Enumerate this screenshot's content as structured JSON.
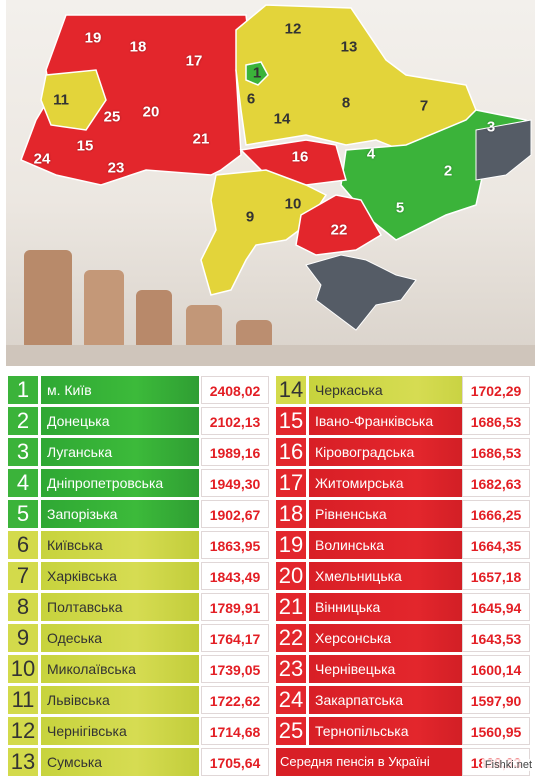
{
  "map": {
    "labels": [
      {
        "n": "19",
        "color": "red"
      },
      {
        "n": "18",
        "color": "red"
      },
      {
        "n": "17",
        "color": "red"
      },
      {
        "n": "12",
        "color": "yellow"
      },
      {
        "n": "13",
        "color": "yellow"
      },
      {
        "n": "1",
        "color": "green"
      },
      {
        "n": "11",
        "color": "yellow"
      },
      {
        "n": "6",
        "color": "yellow"
      },
      {
        "n": "8",
        "color": "yellow"
      },
      {
        "n": "7",
        "color": "yellow"
      },
      {
        "n": "25",
        "color": "red"
      },
      {
        "n": "20",
        "color": "red"
      },
      {
        "n": "14",
        "color": "yellow"
      },
      {
        "n": "3",
        "color": "green"
      },
      {
        "n": "21",
        "color": "red"
      },
      {
        "n": "15",
        "color": "red"
      },
      {
        "n": "24",
        "color": "red"
      },
      {
        "n": "23",
        "color": "red"
      },
      {
        "n": "16",
        "color": "red"
      },
      {
        "n": "4",
        "color": "green"
      },
      {
        "n": "2",
        "color": "green"
      },
      {
        "n": "5",
        "color": "green"
      },
      {
        "n": "10",
        "color": "yellow"
      },
      {
        "n": "9",
        "color": "yellow"
      },
      {
        "n": "22",
        "color": "red"
      }
    ]
  },
  "table": {
    "left": [
      {
        "n": "1",
        "name": "м. Київ",
        "value": "2408,02",
        "tier": "g"
      },
      {
        "n": "2",
        "name": "Донецька",
        "value": "2102,13",
        "tier": "g"
      },
      {
        "n": "3",
        "name": "Луганська",
        "value": "1989,16",
        "tier": "g"
      },
      {
        "n": "4",
        "name": "Дніпропетровська",
        "value": "1949,30",
        "tier": "g"
      },
      {
        "n": "5",
        "name": "Запорізька",
        "value": "1902,67",
        "tier": "g"
      },
      {
        "n": "6",
        "name": "Київська",
        "value": "1863,95",
        "tier": "y"
      },
      {
        "n": "7",
        "name": "Харківська",
        "value": "1843,49",
        "tier": "y"
      },
      {
        "n": "8",
        "name": "Полтавська",
        "value": "1789,91",
        "tier": "y"
      },
      {
        "n": "9",
        "name": "Одеська",
        "value": "1764,17",
        "tier": "y"
      },
      {
        "n": "10",
        "name": "Миколаївська",
        "value": "1739,05",
        "tier": "y"
      },
      {
        "n": "11",
        "name": "Львівська",
        "value": "1722,62",
        "tier": "y"
      },
      {
        "n": "12",
        "name": "Чернігівська",
        "value": "1714,68",
        "tier": "y"
      },
      {
        "n": "13",
        "name": "Сумська",
        "value": "1705,64",
        "tier": "y"
      }
    ],
    "right": [
      {
        "n": "14",
        "name": "Черкаська",
        "value": "1702,29",
        "tier": "y"
      },
      {
        "n": "15",
        "name": "Івано-Франківська",
        "value": "1686,53",
        "tier": "r"
      },
      {
        "n": "16",
        "name": "Кіровоградська",
        "value": "1686,53",
        "tier": "r"
      },
      {
        "n": "17",
        "name": "Житомирська",
        "value": "1682,63",
        "tier": "r"
      },
      {
        "n": "18",
        "name": "Рівненська",
        "value": "1666,25",
        "tier": "r"
      },
      {
        "n": "19",
        "name": "Волинська",
        "value": "1664,35",
        "tier": "r"
      },
      {
        "n": "20",
        "name": "Хмельницька",
        "value": "1657,18",
        "tier": "r"
      },
      {
        "n": "21",
        "name": "Вінницька",
        "value": "1645,94",
        "tier": "r"
      },
      {
        "n": "22",
        "name": "Херсонська",
        "value": "1643,53",
        "tier": "r"
      },
      {
        "n": "23",
        "name": "Чернівецька",
        "value": "1600,14",
        "tier": "r"
      },
      {
        "n": "24",
        "name": "Закарпатська",
        "value": "1597,90",
        "tier": "r"
      },
      {
        "n": "25",
        "name": "Тернопільська",
        "value": "1560,95",
        "tier": "r"
      }
    ],
    "average": {
      "name": "Середня пенсія в Україні",
      "value": "1828,33"
    }
  },
  "colors": {
    "green": "#3bb33a",
    "yellow": "#e3d43a",
    "red": "#e3262c"
  },
  "watermark": "Fishki.net"
}
